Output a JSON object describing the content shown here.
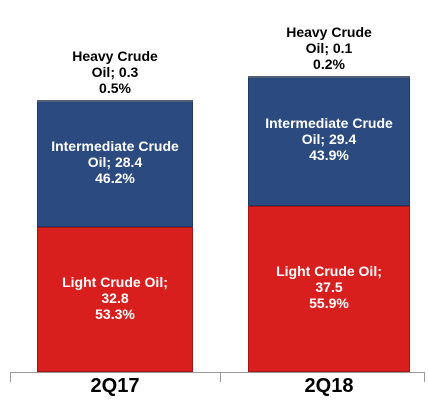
{
  "chart_data": {
    "type": "stacked_bar",
    "categories": [
      "2Q17",
      "2Q18"
    ],
    "series": [
      {
        "name": "Light Crude Oil",
        "color": "#d91e1e",
        "values": [
          32.8,
          37.5
        ],
        "value_labels": [
          "Light Crude Oil; 32.8",
          "Light Crude Oil; 37.5"
        ],
        "share_labels": [
          "53.3%",
          "55.9%"
        ]
      },
      {
        "name": "Intermediate Crude Oil",
        "color": "#2b4b80",
        "values": [
          28.4,
          29.4
        ],
        "value_labels": [
          "Intermediate Crude Oil; 28.4",
          "Intermediate Crude Oil; 29.4"
        ],
        "share_labels": [
          "46.2%",
          "43.9%"
        ]
      },
      {
        "name": "Heavy Crude Oil",
        "color": "#6f7f99",
        "values": [
          0.3,
          0.1
        ],
        "value_labels": [
          "Heavy Crude Oil; 0.3",
          "Heavy Crude Oil; 0.1"
        ],
        "share_labels": [
          "0.5%",
          "0.2%"
        ]
      }
    ]
  }
}
